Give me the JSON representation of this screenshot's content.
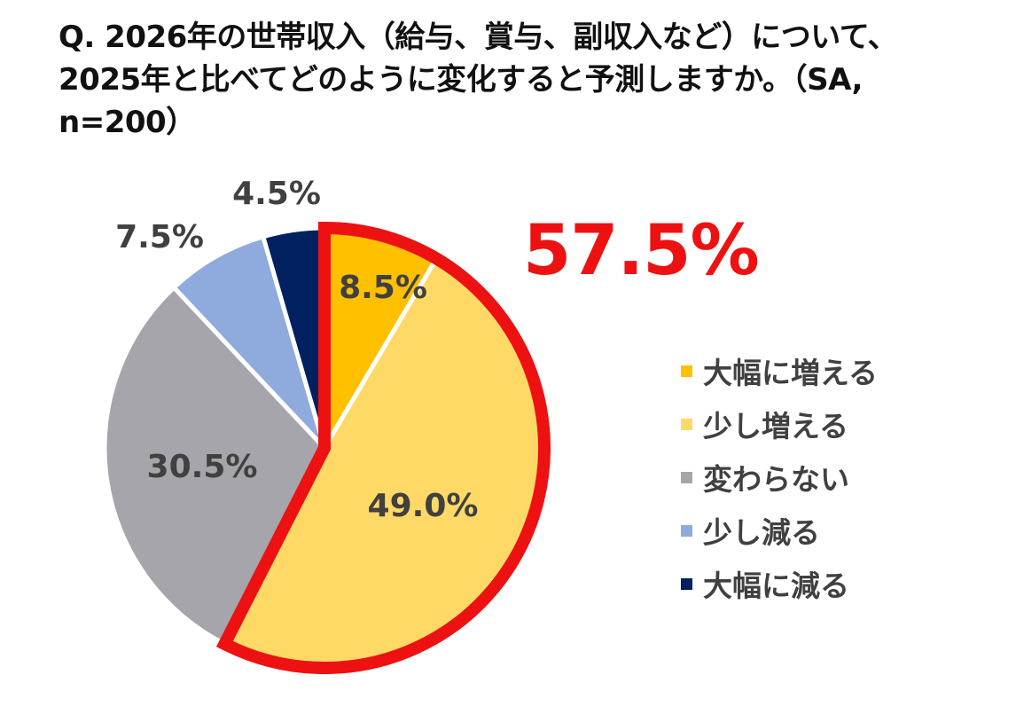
{
  "title": {
    "line1": "Q. 2026年の世帯収入（給与、賞与、副収入など）について、",
    "line2": "2025年と比べてどのように変化すると予測しますか。（SA,",
    "line3": "n=200）"
  },
  "highlight": {
    "value": "57.5%",
    "color": "#ee1111"
  },
  "chart_data": {
    "type": "pie",
    "title": "Q. 2026年の世帯収入（給与、賞与、副収入など）について、2025年と比べてどのように変化すると予測しますか。（SA, n=200）",
    "unit": "%",
    "start_angle_deg": 0,
    "direction": "clockwise",
    "legend_position": "right",
    "highlighted_slices": [
      "大幅に増える",
      "少し増える"
    ],
    "highlight_total": 57.5,
    "slices": [
      {
        "name": "大幅に増える",
        "value": 8.5,
        "label": "8.5%",
        "color": "#ffc000"
      },
      {
        "name": "少し増える",
        "value": 49.0,
        "label": "49.0%",
        "color": "#ffd966"
      },
      {
        "name": "変わらない",
        "value": 30.5,
        "label": "30.5%",
        "color": "#a5a5ab"
      },
      {
        "name": "少し減る",
        "value": 7.5,
        "label": "7.5%",
        "color": "#8faadc"
      },
      {
        "name": "大幅に減る",
        "value": 4.5,
        "label": "4.5%",
        "color": "#002060"
      }
    ]
  }
}
